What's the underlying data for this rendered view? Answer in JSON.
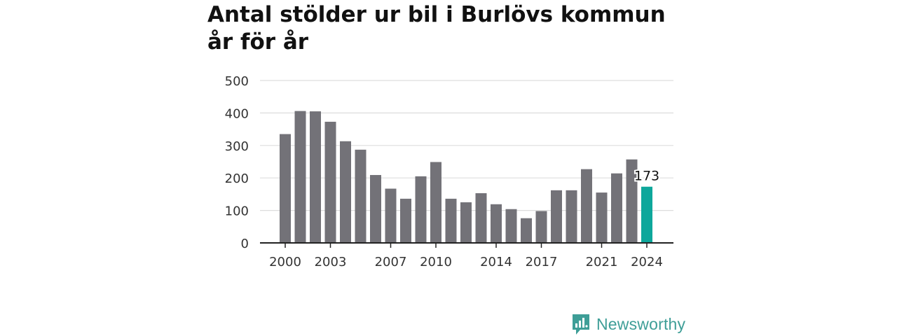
{
  "title": "Antal stölder ur bil i Burlövs kommun år för år",
  "brand": {
    "name": "Newsworthy",
    "logo_icon": "bar-chart-logo-icon",
    "color": "#3e9e97"
  },
  "colors": {
    "bar": "#737278",
    "highlight": "#0ea79b",
    "grid": "#dddddd",
    "axis": "#222222"
  },
  "chart_data": {
    "type": "bar",
    "title": "Antal stölder ur bil i Burlövs kommun år för år",
    "xlabel": "",
    "ylabel": "",
    "categories": [
      2000,
      2001,
      2002,
      2003,
      2004,
      2005,
      2006,
      2007,
      2008,
      2009,
      2010,
      2011,
      2012,
      2013,
      2014,
      2015,
      2016,
      2017,
      2018,
      2019,
      2020,
      2021,
      2022,
      2023,
      2024
    ],
    "values": [
      335,
      406,
      405,
      373,
      313,
      287,
      209,
      167,
      136,
      205,
      249,
      136,
      125,
      153,
      119,
      104,
      76,
      98,
      162,
      162,
      227,
      155,
      214,
      257,
      173
    ],
    "highlight_index": 24,
    "highlight_label": "173",
    "x_ticks": [
      2000,
      2003,
      2007,
      2010,
      2014,
      2017,
      2021,
      2024
    ],
    "y_ticks": [
      0,
      100,
      200,
      300,
      400,
      500
    ],
    "ylim": [
      0,
      500
    ],
    "grid": true
  }
}
